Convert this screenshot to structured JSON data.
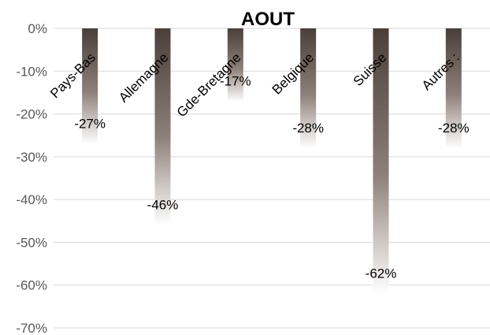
{
  "chart_data": {
    "type": "bar",
    "title": "AOUT",
    "xlabel": "",
    "ylabel": "",
    "categories": [
      "Pays-Bas",
      "Allemagne",
      "Gde-Bretagne",
      "Belgique",
      "Suisse",
      "Autres :"
    ],
    "values": [
      -27,
      -46,
      -17,
      -28,
      -62,
      -28
    ],
    "data_labels": [
      "-27%",
      "-46%",
      "-17%",
      "-28%",
      "-62%",
      "-28%"
    ],
    "ylim": [
      -70,
      0
    ],
    "yticks": [
      0,
      -10,
      -20,
      -30,
      -40,
      -50,
      -60,
      -70
    ],
    "ytick_labels": [
      "0%",
      "-10%",
      "-20%",
      "-30%",
      "-40%",
      "-50%",
      "-60%",
      "-70%"
    ],
    "grid": true,
    "legend": "none",
    "colors": {
      "bar_dark": "#4a3f3b",
      "bar_mid": "#8d7f79",
      "bar_light": "#ffffff",
      "grid": "#d9d9d9",
      "tick_text": "#595959"
    }
  }
}
